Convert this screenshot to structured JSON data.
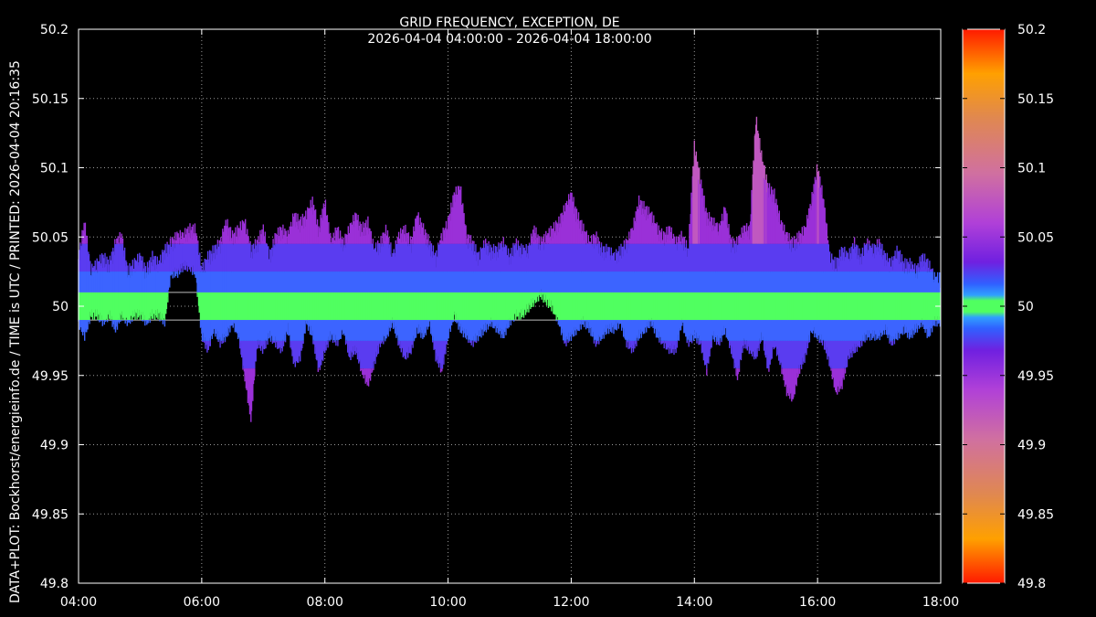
{
  "chart_data": {
    "type": "scatter",
    "title": "GRID FREQUENCY, EXCEPTION, DE",
    "subtitle": "2026-04-04 04:00:00 - 2026-04-04 18:00:00",
    "side_note": "DATA+PLOT: Bockhorst/energieinfo.de / TIME is UTC / PRINTED: 2026-04-04 20:16:35",
    "xlabel": "",
    "ylabel": "",
    "x_ticks": [
      "04:00",
      "06:00",
      "08:00",
      "10:00",
      "12:00",
      "14:00",
      "16:00",
      "18:00"
    ],
    "x_range_hours": [
      4,
      18
    ],
    "y_ticks": [
      "50.2",
      "50.15",
      "50.1",
      "50.05",
      "50",
      "49.95",
      "49.9",
      "49.85",
      "49.8"
    ],
    "ylim": [
      49.8,
      50.2
    ],
    "reference_lines": [
      49.99,
      50.01
    ],
    "grid": true,
    "colorbar": {
      "range": [
        49.8,
        50.2
      ],
      "ticks": [
        "50.2",
        "50.15",
        "50.1",
        "50.05",
        "50",
        "49.95",
        "49.9",
        "49.85",
        "49.8"
      ]
    },
    "series": [
      {
        "x": [
          4.0,
          4.1,
          4.2,
          4.3,
          4.4,
          4.5,
          4.6,
          4.7,
          4.8,
          4.9,
          5.0,
          5.1,
          5.2,
          5.3,
          5.4,
          5.5,
          5.6,
          5.7,
          5.8,
          5.9,
          6.0,
          6.1,
          6.2,
          6.3,
          6.4,
          6.5,
          6.6,
          6.7,
          6.8,
          6.9,
          7.0,
          7.1,
          7.2,
          7.3,
          7.4,
          7.5,
          7.6,
          7.7,
          7.8,
          7.9,
          8.0,
          8.1,
          8.2,
          8.3,
          8.4,
          8.5,
          8.6,
          8.7,
          8.8,
          8.9,
          9.0,
          9.1,
          9.2,
          9.3,
          9.4,
          9.5,
          9.6,
          9.7,
          9.8,
          9.9,
          10.0,
          10.1,
          10.2,
          10.3,
          10.4,
          10.5,
          10.6,
          10.7,
          10.8,
          10.9,
          11.0,
          11.1,
          11.2,
          11.3,
          11.4,
          11.5,
          11.6,
          11.7,
          11.8,
          11.9,
          12.0,
          12.1,
          12.2,
          12.3,
          12.4,
          12.5,
          12.6,
          12.7,
          12.8,
          12.9,
          13.0,
          13.1,
          13.2,
          13.3,
          13.4,
          13.5,
          13.6,
          13.7,
          13.8,
          13.9,
          14.0,
          14.1,
          14.2,
          14.3,
          14.4,
          14.5,
          14.6,
          14.7,
          14.8,
          14.9,
          15.0,
          15.1,
          15.2,
          15.3,
          15.4,
          15.5,
          15.6,
          15.7,
          15.8,
          15.9,
          16.0,
          16.1,
          16.2,
          16.3,
          16.4,
          16.5,
          16.6,
          16.7,
          16.8,
          16.9,
          17.0,
          17.1,
          17.2,
          17.3,
          17.4,
          17.5,
          17.6,
          17.7,
          17.8,
          17.9,
          18.0
        ],
        "high": [
          50.04,
          50.065,
          50.03,
          50.035,
          50.04,
          50.035,
          50.05,
          50.055,
          50.03,
          50.035,
          50.04,
          50.03,
          50.04,
          50.035,
          50.045,
          50.05,
          50.055,
          50.055,
          50.06,
          50.06,
          50.03,
          50.04,
          50.045,
          50.05,
          50.065,
          50.055,
          50.06,
          50.065,
          50.045,
          50.05,
          50.06,
          50.04,
          50.055,
          50.06,
          50.055,
          50.07,
          50.065,
          50.07,
          50.08,
          50.06,
          50.08,
          50.05,
          50.06,
          50.05,
          50.06,
          50.07,
          50.06,
          50.065,
          50.045,
          50.05,
          50.06,
          50.04,
          50.055,
          50.06,
          50.05,
          50.07,
          50.06,
          50.05,
          50.04,
          50.055,
          50.065,
          50.085,
          50.09,
          50.055,
          50.05,
          50.04,
          50.05,
          50.045,
          50.045,
          50.05,
          50.04,
          50.05,
          50.045,
          50.045,
          50.06,
          50.05,
          50.055,
          50.06,
          50.065,
          50.075,
          50.085,
          50.07,
          50.06,
          50.05,
          50.055,
          50.045,
          50.045,
          50.04,
          50.045,
          50.05,
          50.06,
          50.08,
          50.075,
          50.07,
          50.06,
          50.055,
          50.06,
          50.05,
          50.055,
          50.045,
          50.12,
          50.095,
          50.07,
          50.065,
          50.06,
          50.075,
          50.05,
          50.05,
          50.06,
          50.06,
          50.14,
          50.11,
          50.09,
          50.085,
          50.065,
          50.055,
          50.05,
          50.055,
          50.06,
          50.08,
          50.105,
          50.08,
          50.04,
          50.035,
          50.045,
          50.04,
          50.05,
          50.04,
          50.05,
          50.045,
          50.05,
          50.04,
          50.035,
          50.045,
          50.035,
          50.035,
          50.03,
          50.04,
          50.035,
          50.025,
          50.025
        ],
        "low": [
          49.985,
          49.975,
          49.99,
          49.99,
          49.985,
          49.99,
          49.98,
          49.99,
          49.985,
          49.99,
          49.99,
          49.985,
          49.99,
          49.99,
          49.985,
          50.02,
          50.02,
          50.025,
          50.025,
          50.02,
          49.975,
          49.965,
          49.98,
          49.97,
          49.975,
          49.985,
          49.975,
          49.945,
          49.915,
          49.97,
          49.965,
          49.975,
          49.97,
          49.965,
          49.98,
          49.955,
          49.96,
          49.985,
          49.975,
          49.95,
          49.965,
          49.975,
          49.97,
          49.98,
          49.96,
          49.965,
          49.95,
          49.94,
          49.955,
          49.97,
          49.975,
          49.985,
          49.97,
          49.96,
          49.965,
          49.98,
          49.975,
          49.985,
          49.96,
          49.95,
          49.975,
          49.99,
          49.98,
          49.975,
          49.97,
          49.975,
          49.98,
          49.985,
          49.98,
          49.975,
          49.985,
          49.99,
          49.99,
          49.995,
          50.0,
          50.005,
          50.0,
          49.995,
          49.985,
          49.97,
          49.975,
          49.98,
          49.985,
          49.98,
          49.97,
          49.975,
          49.98,
          49.98,
          49.985,
          49.97,
          49.965,
          49.975,
          49.98,
          49.985,
          49.975,
          49.97,
          49.965,
          49.965,
          49.985,
          49.97,
          49.975,
          49.97,
          49.95,
          49.975,
          49.97,
          49.98,
          49.965,
          49.945,
          49.97,
          49.965,
          49.96,
          49.975,
          49.95,
          49.97,
          49.955,
          49.935,
          49.93,
          49.95,
          49.96,
          49.98,
          49.975,
          49.97,
          49.955,
          49.935,
          49.94,
          49.96,
          49.965,
          49.97,
          49.975,
          49.975,
          49.975,
          49.98,
          49.97,
          49.975,
          49.98,
          49.975,
          49.98,
          49.985,
          49.975,
          49.985,
          49.985
        ]
      }
    ]
  }
}
